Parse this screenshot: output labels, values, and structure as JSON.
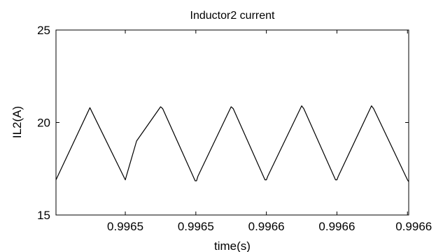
{
  "chart_data": {
    "type": "line",
    "title": "Inductor2 current",
    "xlabel": "time(s)",
    "ylabel": "IL2(A)",
    "xlim": [
      0,
      1
    ],
    "ylim": [
      15,
      25
    ],
    "y_ticks": [
      15,
      20,
      25
    ],
    "x_ticks": [
      {
        "x": 0.1965,
        "label": "0.9965"
      },
      {
        "x": 0.3965,
        "label": "0.9965"
      },
      {
        "x": 0.5965,
        "label": "0.9966"
      },
      {
        "x": 0.7965,
        "label": "0.9966"
      },
      {
        "x": 0.9965,
        "label": "0.9966"
      }
    ],
    "grid": false,
    "series": [
      {
        "color": "#000000",
        "x": [
          0,
          0.0962,
          0.1965,
          0.2025,
          0.2285,
          0.2965,
          0.3025,
          0.3945,
          0.3985,
          0.4025,
          0.4965,
          0.5025,
          0.5925,
          0.5965,
          0.6005,
          0.6965,
          0.7025,
          0.7925,
          0.7965,
          0.8005,
          0.8945,
          0.9005,
          0.9965,
          1.0
        ],
        "y": [
          16.9,
          20.8,
          16.9,
          17.3,
          19.0,
          20.85,
          20.75,
          16.85,
          16.85,
          17.1,
          20.85,
          20.75,
          16.9,
          16.9,
          17.1,
          20.9,
          20.75,
          16.9,
          16.9,
          17.1,
          20.9,
          20.75,
          16.9,
          16.8
        ]
      }
    ]
  }
}
